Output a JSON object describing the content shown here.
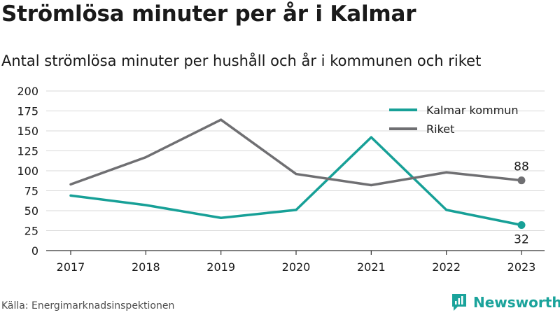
{
  "title": "Strömlösa minuter per år i Kalmar",
  "subtitle": "Antal strömlösa minuter per hushåll och år i kommunen och riket",
  "source": "Källa: Energimarknadsinspektionen",
  "brand": "Newsworthy",
  "brand_icon": "newsworthy-logo-icon",
  "colors": {
    "kalmar": "#17a097",
    "riket": "#6f6f72",
    "grid": "#d9d9d9",
    "axis": "#333333",
    "brand": "#1aa39b"
  },
  "chart_data": {
    "type": "line",
    "title": "Strömlösa minuter per år i Kalmar",
    "subtitle": "Antal strömlösa minuter per hushåll och år i kommunen och riket",
    "xlabel": "",
    "ylabel": "",
    "categories": [
      "2017",
      "2018",
      "2019",
      "2020",
      "2021",
      "2022",
      "2023"
    ],
    "ylim": [
      0,
      200
    ],
    "yticks": [
      0,
      25,
      50,
      75,
      100,
      125,
      150,
      175,
      200
    ],
    "grid": true,
    "legend": "top-right",
    "series": [
      {
        "name": "Kalmar kommun",
        "color": "#17a097",
        "values": [
          69,
          57,
          41,
          51,
          142,
          51,
          32
        ]
      },
      {
        "name": "Riket",
        "color": "#6f6f72",
        "values": [
          83,
          117,
          164,
          96,
          82,
          98,
          88
        ]
      }
    ],
    "end_labels": [
      "32",
      "88"
    ]
  }
}
